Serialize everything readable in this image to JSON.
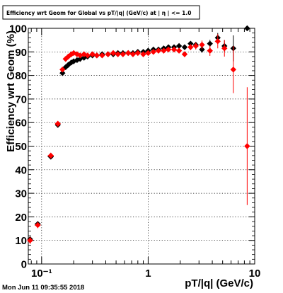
{
  "chart_data": {
    "type": "scatter",
    "title": "Efficiency wrt Geom for Global vs pT/|q| (GeV/c) at | η | <= 1.0",
    "xlabel": "pT/|q| (GeV/c)",
    "ylabel": "Efficiency wrt Geom (%)",
    "xscale": "log",
    "xlim": [
      0.075,
      10
    ],
    "ylim": [
      0,
      100
    ],
    "xticks": [
      {
        "value": 0.1,
        "label": "10⁻¹"
      },
      {
        "value": 1,
        "label": "1"
      },
      {
        "value": 10,
        "label": "10"
      }
    ],
    "yticks": [
      0,
      10,
      20,
      30,
      40,
      50,
      60,
      70,
      80,
      90,
      100
    ],
    "grid": true,
    "legend": "none",
    "series": [
      {
        "color": "#000000",
        "marker": "diamond",
        "points": [
          {
            "x": 0.078,
            "y": 10.5,
            "xerr": 0.003,
            "yerr": 1.0
          },
          {
            "x": 0.092,
            "y": 17.0,
            "xerr": 0.006,
            "yerr": 1.0
          },
          {
            "x": 0.122,
            "y": 45.5,
            "xerr": 0.008,
            "yerr": 1.0
          },
          {
            "x": 0.142,
            "y": 59.0,
            "xerr": 0.003,
            "yerr": 1.0
          },
          {
            "x": 0.157,
            "y": 81.0,
            "xerr": 0.003,
            "yerr": 1.0
          },
          {
            "x": 0.168,
            "y": 83.5,
            "xerr": 0.003,
            "yerr": 0.8
          },
          {
            "x": 0.178,
            "y": 84.5,
            "xerr": 0.003,
            "yerr": 0.8
          },
          {
            "x": 0.19,
            "y": 85.5,
            "xerr": 0.004,
            "yerr": 0.8
          },
          {
            "x": 0.2,
            "y": 86.0,
            "xerr": 0.004,
            "yerr": 0.8
          },
          {
            "x": 0.215,
            "y": 86.5,
            "xerr": 0.005,
            "yerr": 0.8
          },
          {
            "x": 0.23,
            "y": 87.0,
            "xerr": 0.005,
            "yerr": 0.8
          },
          {
            "x": 0.25,
            "y": 87.5,
            "xerr": 0.006,
            "yerr": 0.7
          },
          {
            "x": 0.27,
            "y": 88.0,
            "xerr": 0.007,
            "yerr": 0.7
          },
          {
            "x": 0.3,
            "y": 88.5,
            "xerr": 0.008,
            "yerr": 0.7
          },
          {
            "x": 0.33,
            "y": 88.5,
            "xerr": 0.009,
            "yerr": 0.7
          },
          {
            "x": 0.37,
            "y": 89.0,
            "xerr": 0.01,
            "yerr": 0.7
          },
          {
            "x": 0.42,
            "y": 89.0,
            "xerr": 0.012,
            "yerr": 0.7
          },
          {
            "x": 0.47,
            "y": 89.0,
            "xerr": 0.013,
            "yerr": 0.7
          },
          {
            "x": 0.52,
            "y": 89.5,
            "xerr": 0.015,
            "yerr": 0.7
          },
          {
            "x": 0.58,
            "y": 89.5,
            "xerr": 0.017,
            "yerr": 0.7
          },
          {
            "x": 0.65,
            "y": 89.5,
            "xerr": 0.02,
            "yerr": 0.7
          },
          {
            "x": 0.72,
            "y": 89.5,
            "xerr": 0.022,
            "yerr": 0.7
          },
          {
            "x": 0.8,
            "y": 90.0,
            "xerr": 0.025,
            "yerr": 0.7
          },
          {
            "x": 0.9,
            "y": 90.0,
            "xerr": 0.028,
            "yerr": 0.7
          },
          {
            "x": 1.0,
            "y": 90.5,
            "xerr": 0.03,
            "yerr": 0.7
          },
          {
            "x": 1.12,
            "y": 91.0,
            "xerr": 0.035,
            "yerr": 0.7
          },
          {
            "x": 1.25,
            "y": 91.0,
            "xerr": 0.04,
            "yerr": 0.7
          },
          {
            "x": 1.4,
            "y": 91.5,
            "xerr": 0.045,
            "yerr": 0.8
          },
          {
            "x": 1.55,
            "y": 92.0,
            "xerr": 0.05,
            "yerr": 0.8
          },
          {
            "x": 1.75,
            "y": 92.0,
            "xerr": 0.06,
            "yerr": 0.8
          },
          {
            "x": 1.95,
            "y": 92.5,
            "xerr": 0.07,
            "yerr": 0.8
          },
          {
            "x": 2.2,
            "y": 92.0,
            "xerr": 0.08,
            "yerr": 0.9
          },
          {
            "x": 2.5,
            "y": 93.5,
            "xerr": 0.09,
            "yerr": 1.0
          },
          {
            "x": 2.8,
            "y": 93.0,
            "xerr": 0.1,
            "yerr": 1.2
          },
          {
            "x": 3.2,
            "y": 91.0,
            "xerr": 0.15,
            "yerr": 1.4
          },
          {
            "x": 3.8,
            "y": 93.5,
            "xerr": 0.2,
            "yerr": 1.6
          },
          {
            "x": 4.5,
            "y": 96.0,
            "xerr": 0.2,
            "yerr": 2.0
          },
          {
            "x": 5.2,
            "y": 92.5,
            "xerr": 0.25,
            "yerr": 2.5
          },
          {
            "x": 6.3,
            "y": 91.5,
            "xerr": 0.3,
            "yerr": 5.5
          },
          {
            "x": 8.5,
            "y": 100.0,
            "xerr": 0.4,
            "yerr": 0.5
          }
        ]
      },
      {
        "color": "#ff0000",
        "marker": "diamond",
        "points": [
          {
            "x": 0.078,
            "y": 10.0,
            "xerr": 0.003,
            "yerr": 1.5
          },
          {
            "x": 0.092,
            "y": 16.5,
            "xerr": 0.006,
            "yerr": 1.3
          },
          {
            "x": 0.122,
            "y": 46.0,
            "xerr": 0.008,
            "yerr": 1.2
          },
          {
            "x": 0.142,
            "y": 59.5,
            "xerr": 0.003,
            "yerr": 1.2
          },
          {
            "x": 0.157,
            "y": 82.5,
            "xerr": 0.003,
            "yerr": 1.0
          },
          {
            "x": 0.168,
            "y": 87.0,
            "xerr": 0.003,
            "yerr": 1.0
          },
          {
            "x": 0.178,
            "y": 88.0,
            "xerr": 0.003,
            "yerr": 1.0
          },
          {
            "x": 0.19,
            "y": 89.0,
            "xerr": 0.004,
            "yerr": 1.0
          },
          {
            "x": 0.2,
            "y": 89.5,
            "xerr": 0.004,
            "yerr": 1.0
          },
          {
            "x": 0.215,
            "y": 89.0,
            "xerr": 0.005,
            "yerr": 0.9
          },
          {
            "x": 0.23,
            "y": 88.5,
            "xerr": 0.005,
            "yerr": 0.9
          },
          {
            "x": 0.25,
            "y": 89.0,
            "xerr": 0.006,
            "yerr": 0.9
          },
          {
            "x": 0.27,
            "y": 88.5,
            "xerr": 0.007,
            "yerr": 0.9
          },
          {
            "x": 0.3,
            "y": 89.0,
            "xerr": 0.008,
            "yerr": 0.8
          },
          {
            "x": 0.33,
            "y": 88.5,
            "xerr": 0.009,
            "yerr": 0.8
          },
          {
            "x": 0.37,
            "y": 88.5,
            "xerr": 0.01,
            "yerr": 0.8
          },
          {
            "x": 0.42,
            "y": 89.0,
            "xerr": 0.012,
            "yerr": 0.8
          },
          {
            "x": 0.47,
            "y": 89.5,
            "xerr": 0.013,
            "yerr": 0.8
          },
          {
            "x": 0.52,
            "y": 89.0,
            "xerr": 0.015,
            "yerr": 0.8
          },
          {
            "x": 0.58,
            "y": 89.0,
            "xerr": 0.017,
            "yerr": 0.8
          },
          {
            "x": 0.65,
            "y": 89.5,
            "xerr": 0.02,
            "yerr": 0.8
          },
          {
            "x": 0.72,
            "y": 89.0,
            "xerr": 0.022,
            "yerr": 0.8
          },
          {
            "x": 0.8,
            "y": 89.5,
            "xerr": 0.025,
            "yerr": 0.8
          },
          {
            "x": 0.9,
            "y": 89.0,
            "xerr": 0.028,
            "yerr": 0.8
          },
          {
            "x": 1.0,
            "y": 89.5,
            "xerr": 0.03,
            "yerr": 0.8
          },
          {
            "x": 1.12,
            "y": 90.0,
            "xerr": 0.035,
            "yerr": 0.8
          },
          {
            "x": 1.25,
            "y": 90.5,
            "xerr": 0.04,
            "yerr": 0.9
          },
          {
            "x": 1.4,
            "y": 90.5,
            "xerr": 0.045,
            "yerr": 0.9
          },
          {
            "x": 1.55,
            "y": 91.0,
            "xerr": 0.05,
            "yerr": 0.9
          },
          {
            "x": 1.75,
            "y": 91.0,
            "xerr": 0.06,
            "yerr": 1.0
          },
          {
            "x": 1.95,
            "y": 90.5,
            "xerr": 0.07,
            "yerr": 1.0
          },
          {
            "x": 2.2,
            "y": 89.0,
            "xerr": 0.08,
            "yerr": 1.2
          },
          {
            "x": 2.5,
            "y": 92.0,
            "xerr": 0.09,
            "yerr": 1.3
          },
          {
            "x": 2.8,
            "y": 92.5,
            "xerr": 0.1,
            "yerr": 1.5
          },
          {
            "x": 3.2,
            "y": 93.0,
            "xerr": 0.15,
            "yerr": 1.8
          },
          {
            "x": 3.8,
            "y": 90.5,
            "xerr": 0.2,
            "yerr": 2.2
          },
          {
            "x": 4.5,
            "y": 94.5,
            "xerr": 0.2,
            "yerr": 3.0
          },
          {
            "x": 5.2,
            "y": 91.5,
            "xerr": 0.25,
            "yerr": 3.5
          },
          {
            "x": 6.3,
            "y": 82.5,
            "xerr": 0.3,
            "yerr": 10.0
          },
          {
            "x": 8.5,
            "y": 50.0,
            "xerr": 0.4,
            "yerr": 25.0
          }
        ]
      }
    ]
  },
  "timestamp": "Mon Jun 11 09:35:55 2018"
}
